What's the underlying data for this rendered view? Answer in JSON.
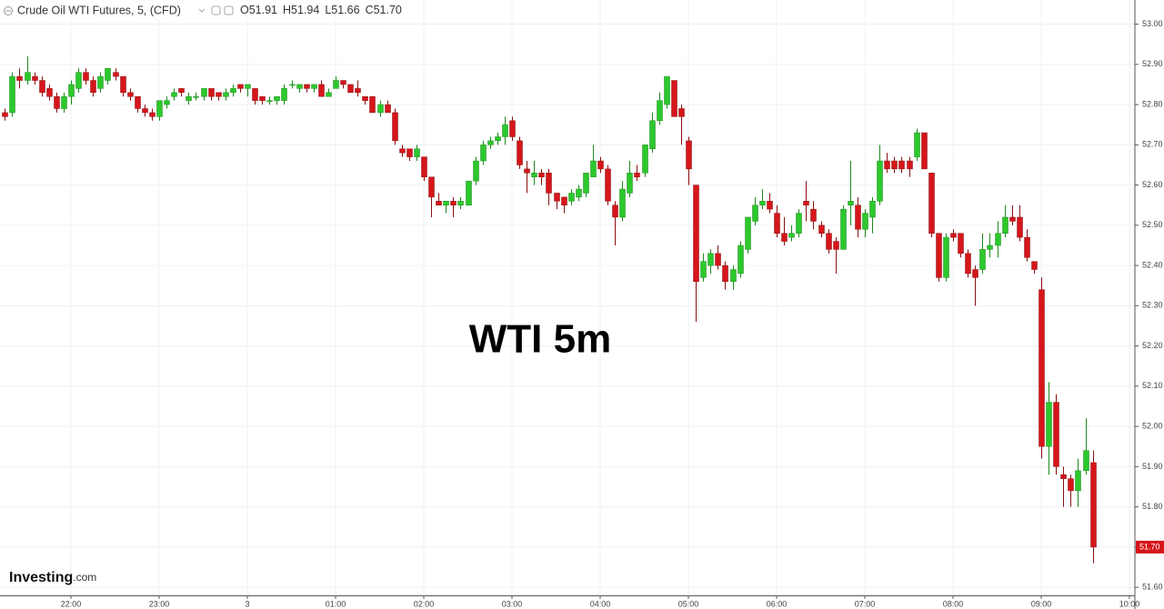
{
  "chart_data": {
    "type": "candlestick",
    "title": "Crude Oil WTI Futures, 5, (CFD)",
    "ohlc_labels": [
      "O51.91",
      "H51.94",
      "L51.66",
      "C51.70"
    ],
    "annotation": "WTI 5m",
    "logo": [
      "Investing",
      ".com"
    ],
    "x": [
      "21:15",
      "21:20",
      "21:25",
      "21:30",
      "21:35",
      "21:40",
      "21:45",
      "21:50",
      "21:55",
      "22:00",
      "22:05",
      "22:10",
      "22:15",
      "22:20",
      "22:25",
      "22:30",
      "22:35",
      "22:40",
      "22:45",
      "22:50",
      "22:55",
      "23:00",
      "23:05",
      "23:10",
      "23:15",
      "23:20",
      "23:25",
      "23:30",
      "23:35",
      "23:40",
      "23:45",
      "23:50",
      "23:55",
      "00:00",
      "00:05",
      "00:10",
      "00:15",
      "00:20",
      "00:25",
      "00:30",
      "00:35",
      "00:40",
      "00:45",
      "00:50",
      "00:55",
      "01:00",
      "01:05",
      "01:10",
      "01:15",
      "01:20",
      "01:25",
      "01:30",
      "01:35",
      "01:40",
      "01:45",
      "01:50",
      "01:55",
      "02:00",
      "02:05",
      "02:10",
      "02:15",
      "02:20",
      "02:25",
      "02:30",
      "02:35",
      "02:40",
      "02:45",
      "02:50",
      "02:55",
      "03:00",
      "03:05",
      "03:10",
      "03:15",
      "03:20",
      "03:25",
      "03:30",
      "03:35",
      "03:40",
      "03:45",
      "03:50",
      "03:55",
      "04:00",
      "04:05",
      "04:10",
      "04:15",
      "04:20",
      "04:25",
      "04:30",
      "04:35",
      "04:40",
      "04:45",
      "04:50",
      "04:55",
      "05:00",
      "05:05",
      "05:10",
      "05:15",
      "05:20",
      "05:25",
      "05:30",
      "05:35",
      "05:40",
      "05:45",
      "05:50",
      "05:55",
      "06:00",
      "06:05",
      "06:10",
      "06:15",
      "06:20",
      "06:25",
      "06:30",
      "06:35",
      "06:40",
      "06:45",
      "06:50",
      "06:55",
      "07:00",
      "07:05",
      "07:10",
      "07:15",
      "07:20",
      "07:25",
      "07:30",
      "07:35",
      "07:40",
      "07:45",
      "07:50",
      "07:55",
      "08:00",
      "08:05",
      "08:10",
      "08:15",
      "08:20",
      "08:25",
      "08:30",
      "08:35",
      "08:40",
      "08:45",
      "08:50",
      "08:55",
      "09:00",
      "09:05",
      "09:10",
      "09:15",
      "09:20",
      "09:25",
      "09:30",
      "09:35"
    ],
    "open": [
      52.78,
      52.78,
      52.87,
      52.86,
      52.87,
      52.86,
      52.84,
      52.82,
      52.79,
      52.82,
      52.84,
      52.88,
      52.86,
      52.84,
      52.86,
      52.88,
      52.87,
      52.83,
      52.82,
      52.79,
      52.78,
      52.77,
      52.8,
      52.82,
      52.84,
      52.81,
      52.82,
      52.82,
      52.84,
      52.83,
      52.82,
      52.83,
      52.85,
      52.84,
      52.84,
      52.82,
      52.81,
      52.81,
      52.81,
      52.85,
      52.84,
      52.85,
      52.84,
      52.85,
      52.82,
      52.84,
      52.86,
      52.85,
      52.84,
      52.82,
      52.82,
      52.78,
      52.8,
      52.78,
      52.69,
      52.69,
      52.67,
      52.67,
      52.62,
      52.56,
      52.55,
      52.56,
      52.55,
      52.55,
      52.61,
      52.66,
      52.7,
      52.71,
      52.72,
      52.76,
      52.71,
      52.64,
      52.62,
      52.63,
      52.63,
      52.58,
      52.57,
      52.56,
      52.57,
      52.58,
      52.62,
      52.66,
      52.64,
      52.55,
      52.52,
      52.58,
      52.63,
      52.63,
      52.69,
      52.76,
      52.8,
      52.86,
      52.79,
      52.71,
      52.6,
      52.37,
      52.4,
      52.43,
      52.4,
      52.36,
      52.38,
      52.44,
      52.51,
      52.55,
      52.56,
      52.53,
      52.48,
      52.47,
      52.48,
      52.56,
      52.54,
      52.5,
      52.48,
      52.46,
      52.44,
      52.55,
      52.55,
      52.49,
      52.52,
      52.56,
      52.66,
      52.66,
      52.66,
      52.66,
      52.67,
      52.73,
      52.63,
      52.48,
      52.37,
      52.48,
      52.48,
      52.43,
      52.39,
      52.39,
      52.44,
      52.45,
      52.48,
      52.52,
      52.52,
      52.47,
      52.41,
      52.34,
      51.95,
      52.06,
      51.88,
      51.87,
      51.84,
      51.89,
      51.91
    ],
    "high": [
      52.79,
      52.88,
      52.89,
      52.92,
      52.88,
      52.87,
      52.85,
      52.83,
      52.83,
      52.86,
      52.89,
      52.89,
      52.87,
      52.88,
      52.89,
      52.89,
      52.87,
      52.84,
      52.82,
      52.8,
      52.79,
      52.81,
      52.82,
      52.84,
      52.84,
      52.83,
      52.83,
      52.84,
      52.84,
      52.83,
      52.84,
      52.85,
      52.85,
      52.85,
      52.84,
      52.82,
      52.82,
      52.82,
      52.85,
      52.86,
      52.85,
      52.85,
      52.85,
      52.86,
      52.84,
      52.87,
      52.86,
      52.85,
      52.86,
      52.82,
      52.82,
      52.81,
      52.81,
      52.79,
      52.7,
      52.69,
      52.7,
      52.67,
      52.62,
      52.58,
      52.56,
      52.57,
      52.57,
      52.61,
      52.67,
      52.71,
      52.72,
      52.73,
      52.77,
      52.77,
      52.72,
      52.66,
      52.66,
      52.64,
      52.64,
      52.58,
      52.57,
      52.59,
      52.6,
      52.63,
      52.7,
      52.67,
      52.65,
      52.56,
      52.61,
      52.66,
      52.65,
      52.7,
      52.78,
      52.83,
      52.87,
      52.86,
      52.8,
      52.72,
      52.6,
      52.43,
      52.44,
      52.45,
      52.41,
      52.4,
      52.46,
      52.52,
      52.57,
      52.59,
      52.58,
      52.55,
      52.52,
      52.5,
      52.54,
      52.61,
      52.56,
      52.51,
      52.49,
      52.47,
      52.55,
      52.66,
      52.57,
      52.54,
      52.57,
      52.7,
      52.68,
      52.67,
      52.67,
      52.67,
      52.74,
      52.73,
      52.63,
      52.48,
      52.48,
      52.49,
      52.48,
      52.44,
      52.4,
      52.48,
      52.48,
      52.51,
      52.55,
      52.55,
      52.55,
      52.49,
      52.41,
      52.37,
      52.11,
      52.08,
      51.9,
      51.88,
      51.92,
      52.02,
      51.94
    ],
    "low": [
      52.76,
      52.77,
      52.84,
      52.85,
      52.85,
      52.82,
      52.81,
      52.78,
      52.78,
      52.8,
      52.83,
      52.85,
      52.82,
      52.83,
      52.85,
      52.86,
      52.82,
      52.81,
      52.78,
      52.77,
      52.76,
      52.76,
      52.79,
      52.81,
      52.82,
      52.8,
      52.81,
      52.81,
      52.81,
      52.81,
      52.81,
      52.82,
      52.83,
      52.82,
      52.8,
      52.8,
      52.8,
      52.8,
      52.8,
      52.84,
      52.83,
      52.83,
      52.83,
      52.82,
      52.82,
      52.84,
      52.84,
      52.83,
      52.82,
      52.8,
      52.78,
      52.77,
      52.78,
      52.7,
      52.67,
      52.66,
      52.66,
      52.61,
      52.52,
      52.55,
      52.53,
      52.52,
      52.54,
      52.55,
      52.6,
      52.65,
      52.69,
      52.7,
      52.7,
      52.71,
      52.64,
      52.58,
      52.6,
      52.6,
      52.55,
      52.54,
      52.53,
      52.55,
      52.56,
      52.57,
      52.62,
      52.63,
      52.55,
      52.45,
      52.51,
      52.57,
      52.61,
      52.62,
      52.68,
      52.75,
      52.79,
      52.77,
      52.7,
      52.6,
      52.26,
      52.36,
      52.38,
      52.39,
      52.34,
      52.34,
      52.37,
      52.43,
      52.5,
      52.54,
      52.53,
      52.47,
      52.45,
      52.46,
      52.47,
      52.51,
      52.49,
      52.47,
      52.43,
      52.38,
      52.44,
      52.5,
      52.47,
      52.47,
      52.48,
      52.55,
      52.63,
      52.63,
      52.63,
      52.62,
      52.66,
      52.64,
      52.47,
      52.36,
      52.36,
      52.46,
      52.42,
      52.37,
      52.3,
      52.38,
      52.42,
      52.42,
      52.47,
      52.5,
      52.46,
      52.41,
      52.38,
      51.92,
      51.88,
      51.88,
      51.8,
      51.8,
      51.8,
      51.88,
      51.66
    ],
    "close": [
      52.77,
      52.87,
      52.86,
      52.88,
      52.86,
      52.83,
      52.82,
      52.79,
      52.82,
      52.85,
      52.88,
      52.86,
      52.83,
      52.87,
      52.89,
      52.87,
      52.83,
      52.82,
      52.79,
      52.78,
      52.77,
      52.81,
      52.81,
      52.83,
      52.83,
      52.82,
      52.82,
      52.84,
      52.82,
      52.82,
      52.83,
      52.84,
      52.84,
      52.85,
      52.81,
      52.81,
      52.81,
      52.82,
      52.84,
      52.85,
      52.85,
      52.84,
      52.85,
      52.82,
      52.83,
      52.86,
      52.85,
      52.83,
      52.83,
      52.81,
      52.78,
      52.8,
      52.78,
      52.71,
      52.68,
      52.67,
      52.69,
      52.62,
      52.57,
      52.55,
      52.56,
      52.55,
      52.56,
      52.61,
      52.66,
      52.7,
      52.71,
      52.72,
      52.75,
      52.72,
      52.65,
      52.63,
      52.63,
      52.62,
      52.58,
      52.56,
      52.55,
      52.58,
      52.59,
      52.63,
      52.66,
      52.64,
      52.56,
      52.52,
      52.59,
      52.63,
      52.62,
      52.7,
      52.76,
      52.81,
      52.87,
      52.77,
      52.77,
      52.64,
      52.36,
      52.41,
      52.43,
      52.4,
      52.36,
      52.39,
      52.45,
      52.52,
      52.55,
      52.56,
      52.54,
      52.48,
      52.46,
      52.48,
      52.53,
      52.55,
      52.51,
      52.48,
      52.44,
      52.44,
      52.54,
      52.56,
      52.49,
      52.53,
      52.56,
      52.66,
      52.64,
      52.64,
      52.64,
      52.64,
      52.73,
      52.64,
      52.48,
      52.37,
      52.47,
      52.47,
      52.43,
      52.38,
      52.37,
      52.44,
      52.45,
      52.48,
      52.52,
      52.51,
      52.47,
      52.42,
      52.39,
      51.95,
      52.06,
      51.9,
      51.87,
      51.84,
      51.89,
      51.94,
      51.7
    ],
    "up_color": "#2dc82d",
    "down_color": "#d5161b",
    "ylim": [
      51.58,
      53.06
    ],
    "yticks": [
      {
        "value": 51.6,
        "label": "51.60"
      },
      {
        "value": 51.7,
        "label": "51.70"
      },
      {
        "value": 51.8,
        "label": "51.80"
      },
      {
        "value": 51.9,
        "label": "51.90"
      },
      {
        "value": 52.0,
        "label": "52.00"
      },
      {
        "value": 52.1,
        "label": "52.10"
      },
      {
        "value": 52.2,
        "label": "52.20"
      },
      {
        "value": 52.3,
        "label": "52.30"
      },
      {
        "value": 52.4,
        "label": "52.40"
      },
      {
        "value": 52.5,
        "label": "52.50"
      },
      {
        "value": 52.6,
        "label": "52.60"
      },
      {
        "value": 52.7,
        "label": "52.70"
      },
      {
        "value": 52.8,
        "label": "52.80"
      },
      {
        "value": 52.9,
        "label": "52.90"
      },
      {
        "value": 53.0,
        "label": "53.00"
      }
    ],
    "xticks": [
      {
        "value": "22:00",
        "label": "22:00"
      },
      {
        "value": "23:00",
        "label": "23:00"
      },
      {
        "value": "00:00",
        "label": "3"
      },
      {
        "value": "01:00",
        "label": "01:00"
      },
      {
        "value": "02:00",
        "label": "02:00"
      },
      {
        "value": "03:00",
        "label": "03:00"
      },
      {
        "value": "04:00",
        "label": "04:00"
      },
      {
        "value": "05:00",
        "label": "05:00"
      },
      {
        "value": "06:00",
        "label": "06:00"
      },
      {
        "value": "07:00",
        "label": "07:00"
      },
      {
        "value": "08:00",
        "label": "08:00"
      },
      {
        "value": "09:00",
        "label": "09:00"
      },
      {
        "value": "10:00",
        "label": "10:00"
      }
    ],
    "last_price": {
      "value": 51.7,
      "label": "51.70"
    },
    "grid": true
  }
}
